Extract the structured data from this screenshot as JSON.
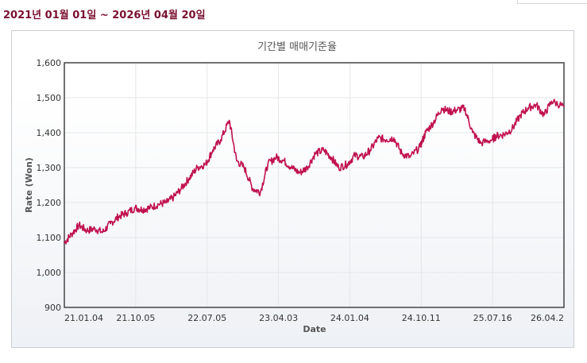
{
  "header": {
    "date_range": "2021년 01월 01일 ~ 2026년 04월 20일"
  },
  "chart_data": {
    "type": "line",
    "title": "기간별 매매기준율",
    "xlabel": "Date",
    "ylabel": "Rate (Won)",
    "ylim": [
      900,
      1600
    ],
    "y_ticks": [
      "1,600",
      "1,500",
      "1,400",
      "1,300",
      "1,200",
      "1,100",
      "1,000",
      "900"
    ],
    "x_ticks": [
      "21.01.04",
      "21.10.05",
      "22.07.05",
      "23.04.03",
      "24.01.04",
      "24.10.11",
      "25.07.16",
      "26.04.2"
    ],
    "grid": true,
    "line_color": "#c0114e",
    "series": [
      {
        "x": [
          "21.01.04",
          "21.02.01",
          "21.03.02",
          "21.04.01",
          "21.05.03",
          "21.06.01",
          "21.07.01",
          "21.08.02",
          "21.09.01",
          "21.10.05",
          "21.11.01",
          "21.12.01",
          "22.01.03",
          "22.02.03",
          "22.03.02",
          "22.04.01",
          "22.05.02",
          "22.06.02",
          "22.07.05",
          "22.08.01",
          "22.09.01",
          "22.10.04",
          "22.11.01",
          "22.12.01",
          "23.01.02",
          "23.02.01",
          "23.03.02",
          "23.04.03",
          "23.05.02",
          "23.06.01",
          "23.07.03",
          "23.08.01",
          "23.09.01",
          "23.10.04",
          "23.11.01",
          "23.12.01",
          "24.01.04",
          "24.02.01",
          "24.03.04",
          "24.04.01",
          "24.05.02",
          "24.06.03",
          "24.07.01",
          "24.08.01",
          "24.09.02",
          "24.10.11",
          "24.11.01",
          "24.12.02",
          "25.01.02",
          "25.02.03",
          "25.03.04",
          "25.04.01",
          "25.05.02",
          "25.06.02",
          "25.07.16",
          "25.08.01",
          "25.09.01",
          "25.10.01",
          "25.11.03",
          "25.12.01",
          "26.01.02",
          "26.02.02",
          "26.03.03",
          "26.04.20"
        ],
        "values": [
          1085,
          1110,
          1135,
          1120,
          1125,
          1115,
          1140,
          1160,
          1170,
          1185,
          1180,
          1185,
          1195,
          1200,
          1215,
          1240,
          1270,
          1300,
          1310,
          1350,
          1380,
          1435,
          1320,
          1300,
          1240,
          1230,
          1310,
          1330,
          1320,
          1300,
          1285,
          1300,
          1340,
          1350,
          1330,
          1300,
          1310,
          1335,
          1330,
          1350,
          1385,
          1380,
          1385,
          1340,
          1330,
          1360,
          1400,
          1430,
          1470,
          1460,
          1465,
          1470,
          1400,
          1370,
          1380,
          1390,
          1395,
          1410,
          1450,
          1470,
          1480,
          1450,
          1490,
          1475
        ]
      }
    ]
  }
}
